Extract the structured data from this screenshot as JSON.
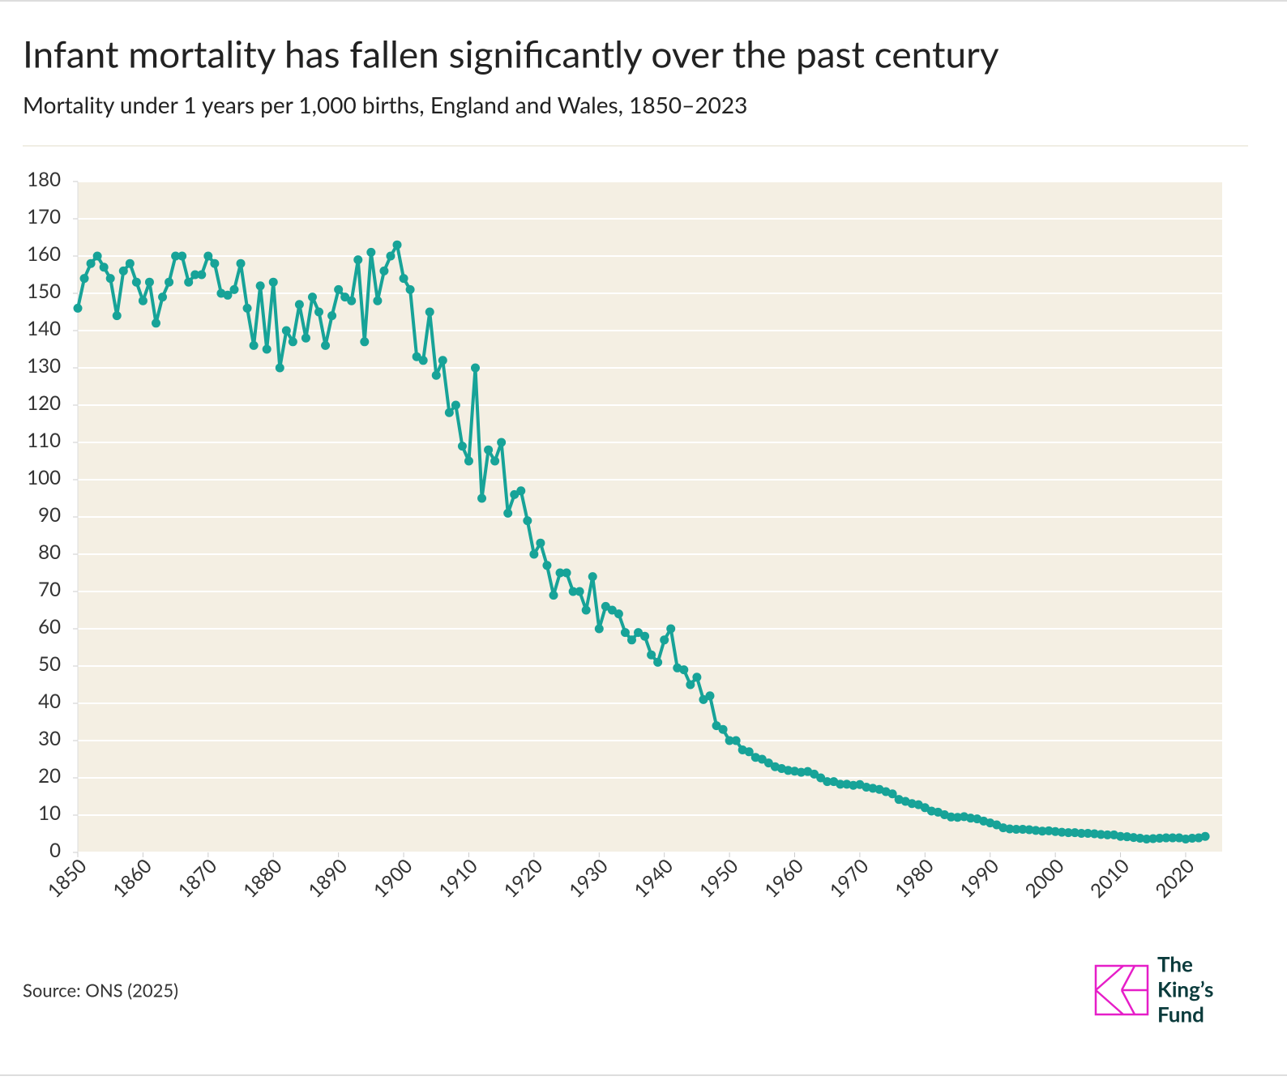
{
  "chart_data": {
    "type": "line",
    "title": "Infant mortality has fallen significantly over the past century",
    "subtitle": "Mortality under 1 years per 1,000 births, England and Wales, 1850–2023",
    "source": "Source: ONS (2025)",
    "logo": [
      "The",
      "King’s",
      "Fund"
    ],
    "color": "#17a398",
    "grid": true,
    "x": [
      1850,
      1851,
      1852,
      1853,
      1854,
      1855,
      1856,
      1857,
      1858,
      1859,
      1860,
      1861,
      1862,
      1863,
      1864,
      1865,
      1866,
      1867,
      1868,
      1869,
      1870,
      1871,
      1872,
      1873,
      1874,
      1875,
      1876,
      1877,
      1878,
      1879,
      1880,
      1881,
      1882,
      1883,
      1884,
      1885,
      1886,
      1887,
      1888,
      1889,
      1890,
      1891,
      1892,
      1893,
      1894,
      1895,
      1896,
      1897,
      1898,
      1899,
      1900,
      1901,
      1902,
      1903,
      1904,
      1905,
      1906,
      1907,
      1908,
      1909,
      1910,
      1911,
      1912,
      1913,
      1914,
      1915,
      1916,
      1917,
      1918,
      1919,
      1920,
      1921,
      1922,
      1923,
      1924,
      1925,
      1926,
      1927,
      1928,
      1929,
      1930,
      1931,
      1932,
      1933,
      1934,
      1935,
      1936,
      1937,
      1938,
      1939,
      1940,
      1941,
      1942,
      1943,
      1944,
      1945,
      1946,
      1947,
      1948,
      1949,
      1950,
      1951,
      1952,
      1953,
      1954,
      1955,
      1956,
      1957,
      1958,
      1959,
      1960,
      1961,
      1962,
      1963,
      1964,
      1965,
      1966,
      1967,
      1968,
      1969,
      1970,
      1971,
      1972,
      1973,
      1974,
      1975,
      1976,
      1977,
      1978,
      1979,
      1980,
      1981,
      1982,
      1983,
      1984,
      1985,
      1986,
      1987,
      1988,
      1989,
      1990,
      1991,
      1992,
      1993,
      1994,
      1995,
      1996,
      1997,
      1998,
      1999,
      2000,
      2001,
      2002,
      2003,
      2004,
      2005,
      2006,
      2007,
      2008,
      2009,
      2010,
      2011,
      2012,
      2013,
      2014,
      2015,
      2016,
      2017,
      2018,
      2019,
      2020,
      2021,
      2022,
      2023
    ],
    "values": [
      146,
      154,
      158,
      160,
      157,
      154,
      144,
      156,
      158,
      153,
      148,
      153,
      142,
      149,
      153,
      160,
      160,
      153,
      155,
      155,
      160,
      158,
      150,
      149.5,
      151,
      158,
      146,
      136,
      152,
      135,
      153,
      130,
      140,
      137,
      147,
      138,
      149,
      145,
      136,
      144,
      151,
      149,
      148,
      159,
      137,
      161,
      148,
      156,
      160,
      163,
      154,
      151,
      133,
      132,
      145,
      128,
      132,
      118,
      120,
      109,
      105,
      130,
      95,
      108,
      105,
      110,
      91,
      96,
      97,
      89,
      80,
      83,
      77,
      69,
      75,
      75,
      70,
      70,
      65,
      74,
      60,
      66,
      65,
      64,
      59,
      57,
      59,
      58,
      53,
      51,
      57,
      60,
      49.5,
      49,
      45,
      47,
      41,
      42,
      34,
      33,
      30,
      30,
      27.5,
      27,
      25.5,
      25,
      24,
      23,
      22.5,
      22,
      21.8,
      21.5,
      21.7,
      21,
      20,
      19,
      19,
      18.3,
      18.3,
      18,
      18.2,
      17.5,
      17.2,
      16.9,
      16.3,
      15.7,
      14.2,
      13.7,
      13.1,
      12.8,
      12,
      11.1,
      10.8,
      10.1,
      9.5,
      9.4,
      9.6,
      9.2,
      9,
      8.4,
      7.9,
      7.4,
      6.6,
      6.3,
      6.2,
      6.2,
      6.1,
      5.9,
      5.7,
      5.8,
      5.6,
      5.4,
      5.3,
      5.3,
      5.1,
      5.1,
      5,
      4.8,
      4.7,
      4.7,
      4.3,
      4.2,
      4,
      3.8,
      3.6,
      3.7,
      3.8,
      3.9,
      3.9,
      3.9,
      3.6,
      3.8,
      3.9,
      4.3
    ],
    "xlim": [
      1850,
      2025.6
    ],
    "xticks": [
      1850,
      1860,
      1870,
      1880,
      1890,
      1900,
      1910,
      1920,
      1930,
      1940,
      1950,
      1960,
      1970,
      1980,
      1990,
      2000,
      2010,
      2020
    ],
    "ylim": [
      0,
      180
    ],
    "yticks": [
      0,
      10,
      20,
      30,
      40,
      50,
      60,
      70,
      80,
      90,
      100,
      110,
      120,
      130,
      140,
      150,
      160,
      170,
      180
    ]
  }
}
